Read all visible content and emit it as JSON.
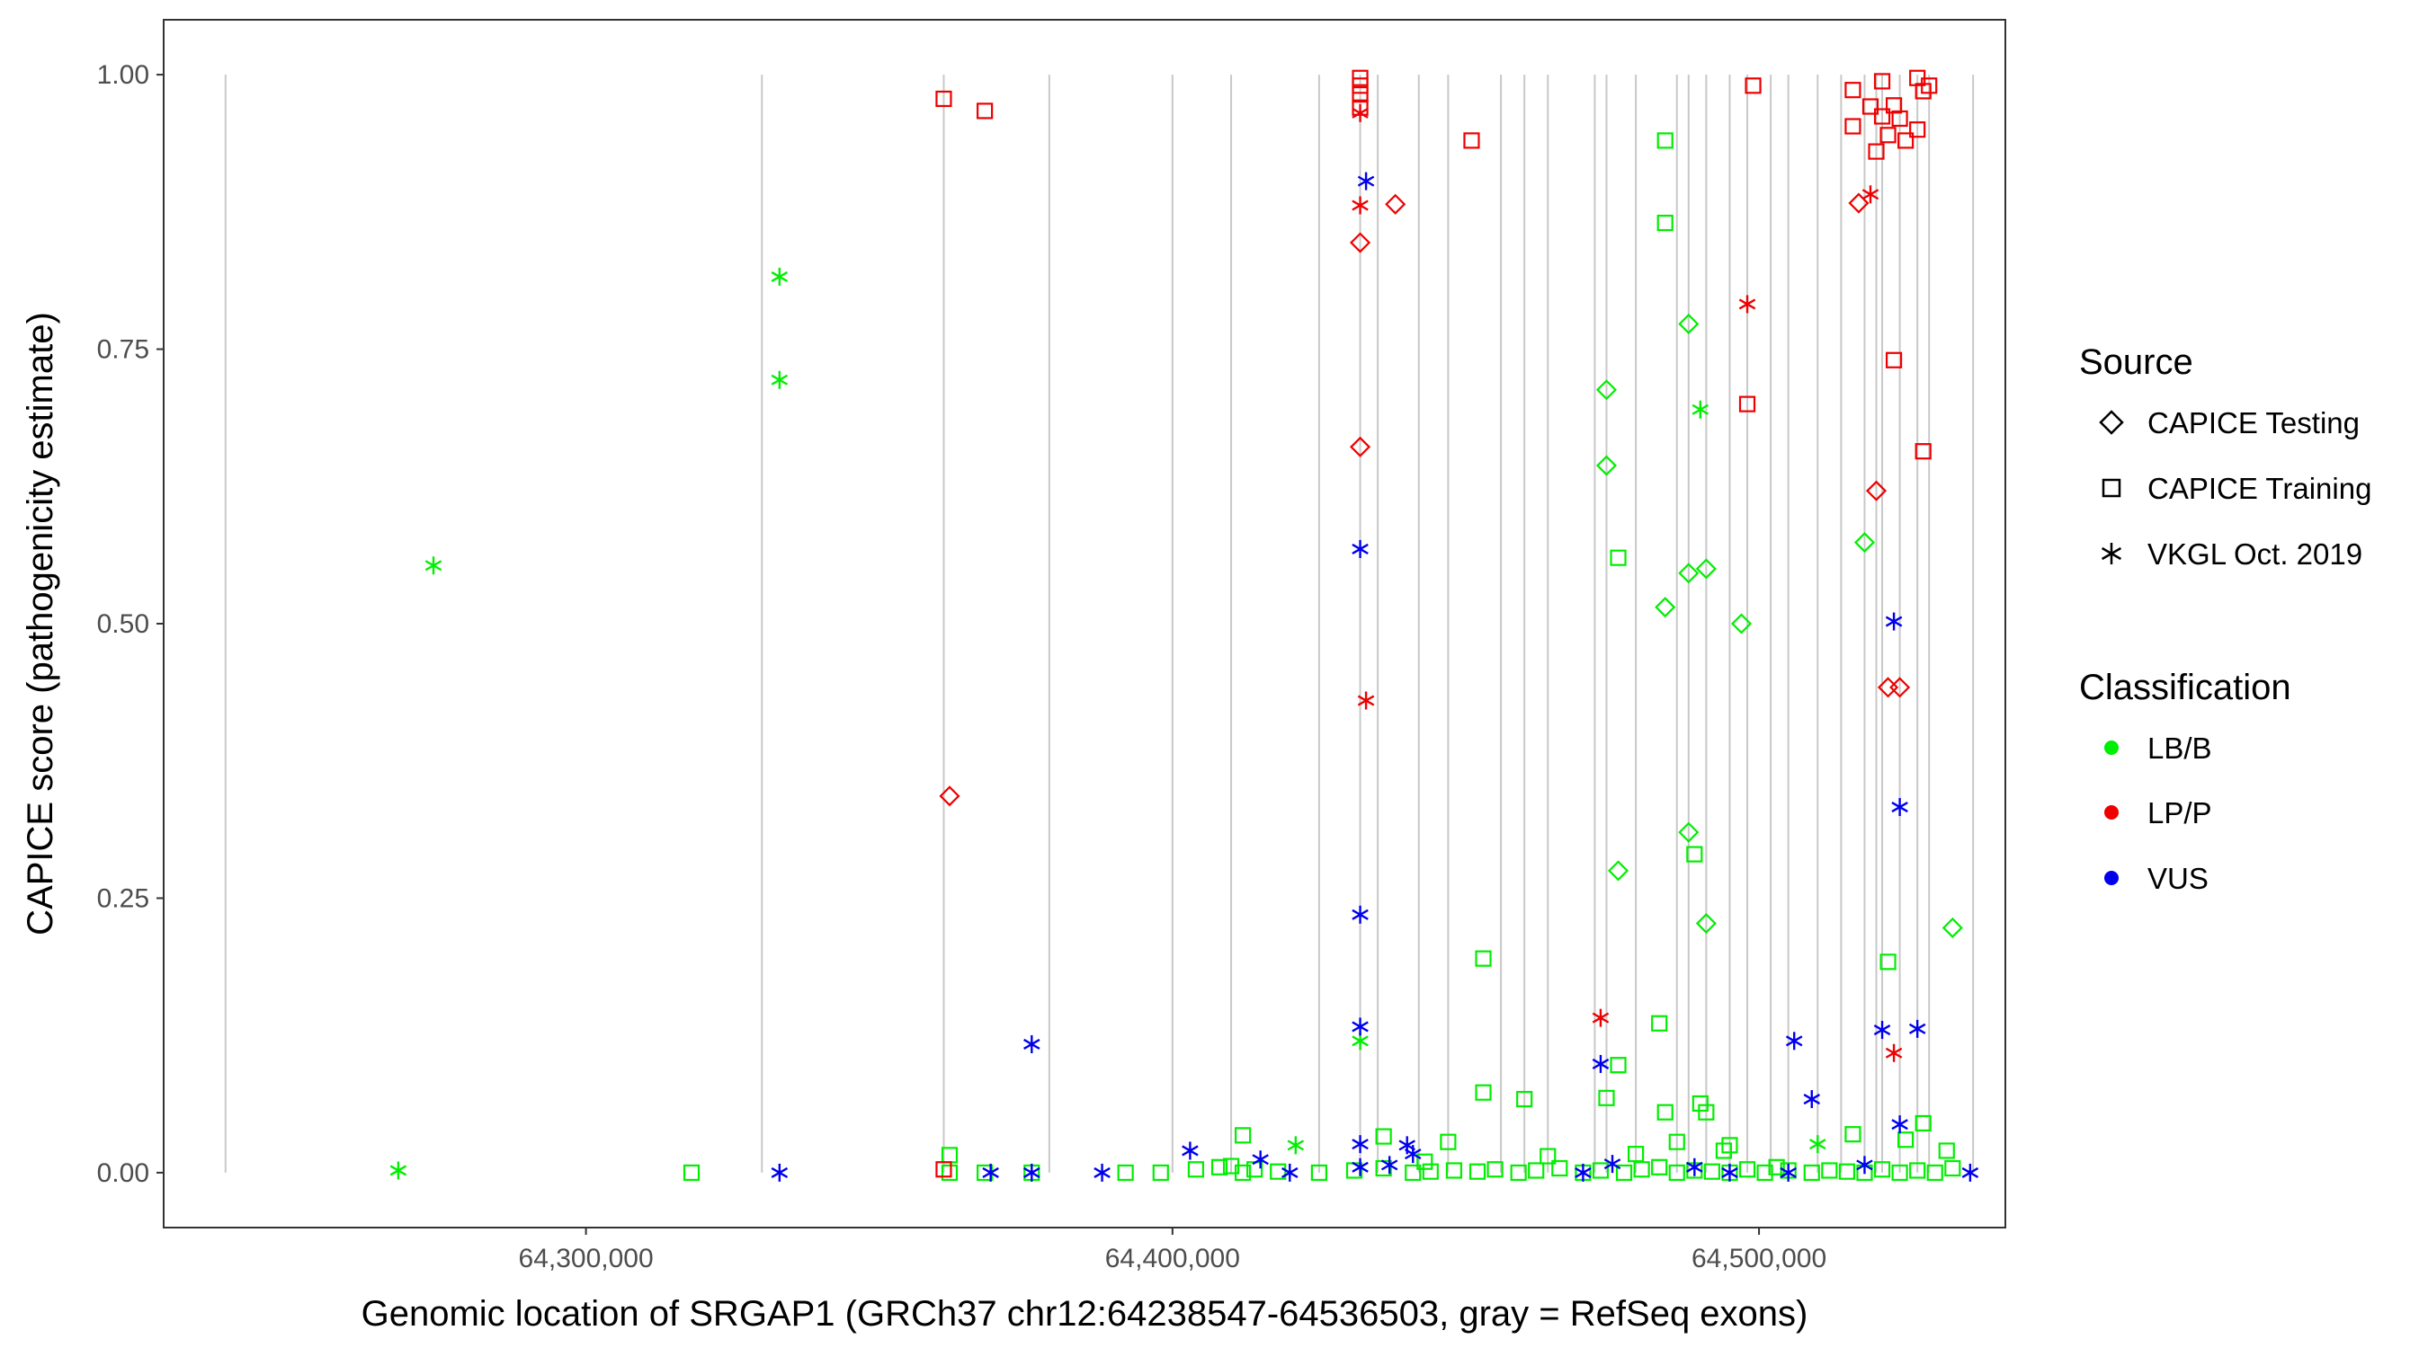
{
  "chart_data": {
    "type": "scatter",
    "title": "",
    "xlabel": "Genomic location of SRGAP1 (GRCh37 chr12:64238547-64536503, gray = RefSeq exons)",
    "ylabel": "CAPICE score (pathogenicity estimate)",
    "xlim": [
      64228000,
      64542000
    ],
    "ylim": [
      -0.05,
      1.05
    ],
    "x_ticks": [
      64300000,
      64400000,
      64500000
    ],
    "x_tick_labels": [
      "64,300,000",
      "64,400,000",
      "64,500,000"
    ],
    "y_ticks": [
      0,
      0.25,
      0.5,
      0.75,
      1.0
    ],
    "y_tick_labels": [
      "0.00",
      "0.25",
      "0.50",
      "0.75",
      "1.00"
    ],
    "gridlines": false,
    "exon_lines": [
      64238547,
      64330000,
      64361000,
      64379000,
      64400000,
      64410000,
      64425000,
      64432000,
      64435000,
      64442000,
      64447000,
      64456000,
      64460000,
      64464000,
      64472000,
      64474000,
      64479000,
      64486000,
      64488000,
      64491000,
      64495000,
      64498000,
      64502000,
      64505000,
      64510000,
      64514000,
      64518000,
      64520000,
      64521000,
      64524000,
      64527000,
      64529000,
      64536503
    ],
    "legend": {
      "source_title": "Source",
      "source_items": [
        {
          "label": "CAPICE Testing",
          "shape": "diamond"
        },
        {
          "label": "CAPICE Training",
          "shape": "square"
        },
        {
          "label": "VKGL Oct. 2019",
          "shape": "asterisk"
        }
      ],
      "class_title": "Classification",
      "class_items": [
        {
          "label": "LB/B",
          "color": "#00ee00"
        },
        {
          "label": "LP/P",
          "color": "#ee0000"
        },
        {
          "label": "VUS",
          "color": "#0000ee"
        }
      ]
    },
    "colors": {
      "LB/B": "#00ee00",
      "LP/P": "#ee0000",
      "VUS": "#0000ee"
    },
    "series": [
      {
        "name": "CAPICE Testing / LB/B",
        "shape": "diamond",
        "class": "LB/B",
        "points": [
          [
            64474000,
            0.713
          ],
          [
            64474000,
            0.644
          ],
          [
            64488000,
            0.773
          ],
          [
            64476000,
            0.275
          ],
          [
            64484000,
            0.515
          ],
          [
            64488000,
            0.546
          ],
          [
            64491000,
            0.55
          ],
          [
            64497000,
            0.5
          ],
          [
            64488000,
            0.31
          ],
          [
            64491000,
            0.227
          ],
          [
            64518000,
            0.574
          ],
          [
            64533000,
            0.223
          ]
        ]
      },
      {
        "name": "CAPICE Testing / LP/P",
        "shape": "diamond",
        "class": "LP/P",
        "points": [
          [
            64432000,
            0.847
          ],
          [
            64432000,
            0.661
          ],
          [
            64438000,
            0.882
          ],
          [
            64362000,
            0.343
          ],
          [
            64517000,
            0.883
          ],
          [
            64520000,
            0.621
          ],
          [
            64522000,
            0.442
          ],
          [
            64524000,
            0.442
          ]
        ]
      },
      {
        "name": "CAPICE Training / LB/B",
        "shape": "square",
        "class": "LB/B",
        "points": [
          [
            64484000,
            0.94
          ],
          [
            64484000,
            0.865
          ],
          [
            64476000,
            0.56
          ],
          [
            64489000,
            0.29
          ],
          [
            64453000,
            0.195
          ],
          [
            64483000,
            0.136
          ],
          [
            64476000,
            0.098
          ],
          [
            64453000,
            0.073
          ],
          [
            64474000,
            0.068
          ],
          [
            64460000,
            0.067
          ],
          [
            64484000,
            0.055
          ],
          [
            64490000,
            0.063
          ],
          [
            64491000,
            0.055
          ],
          [
            64412000,
            0.034
          ],
          [
            64436000,
            0.033
          ],
          [
            64447000,
            0.028
          ],
          [
            64486000,
            0.028
          ],
          [
            64495000,
            0.025
          ],
          [
            64522000,
            0.192
          ],
          [
            64528000,
            0.045
          ],
          [
            64503000,
            0.005
          ],
          [
            64392000,
            0.0
          ],
          [
            64398000,
            0.0
          ],
          [
            64404000,
            0.003
          ],
          [
            64408000,
            0.005
          ],
          [
            64414000,
            0.003
          ],
          [
            64418000,
            0.001
          ],
          [
            64425000,
            0.0
          ],
          [
            64431000,
            0.002
          ],
          [
            64436000,
            0.004
          ],
          [
            64441000,
            0.0
          ],
          [
            64444000,
            0.001
          ],
          [
            64448000,
            0.002
          ],
          [
            64452000,
            0.001
          ],
          [
            64455000,
            0.003
          ],
          [
            64459000,
            0.0
          ],
          [
            64462000,
            0.002
          ],
          [
            64466000,
            0.004
          ],
          [
            64470000,
            0.0
          ],
          [
            64473000,
            0.002
          ],
          [
            64477000,
            0.0
          ],
          [
            64480000,
            0.003
          ],
          [
            64483000,
            0.005
          ],
          [
            64486000,
            0.0
          ],
          [
            64489000,
            0.002
          ],
          [
            64492000,
            0.001
          ],
          [
            64495000,
            0.0
          ],
          [
            64498000,
            0.003
          ],
          [
            64501000,
            0.0
          ],
          [
            64505000,
            0.002
          ],
          [
            64509000,
            0.0
          ],
          [
            64512000,
            0.002
          ],
          [
            64515000,
            0.001
          ],
          [
            64518000,
            0.0
          ],
          [
            64521000,
            0.003
          ],
          [
            64524000,
            0.0
          ],
          [
            64527000,
            0.002
          ],
          [
            64530000,
            0.0
          ],
          [
            64533000,
            0.004
          ],
          [
            64410000,
            0.006
          ],
          [
            64412000,
            0.0
          ],
          [
            64443000,
            0.01
          ],
          [
            64464000,
            0.015
          ],
          [
            64479000,
            0.017
          ],
          [
            64494000,
            0.02
          ],
          [
            64516000,
            0.035
          ],
          [
            64525000,
            0.03
          ],
          [
            64532000,
            0.02
          ],
          [
            64362000,
            0.016
          ],
          [
            64362000,
            0.0
          ],
          [
            64318000,
            0.0
          ],
          [
            64368000,
            0.0
          ],
          [
            64376000,
            0.0
          ]
        ]
      },
      {
        "name": "CAPICE Training / LP/P",
        "shape": "square",
        "class": "LP/P",
        "points": [
          [
            64361000,
            0.978
          ],
          [
            64368000,
            0.967
          ],
          [
            64432000,
            0.99
          ],
          [
            64432000,
            0.997
          ],
          [
            64432000,
            0.982
          ],
          [
            64432000,
            0.97
          ],
          [
            64451000,
            0.94
          ],
          [
            64499000,
            0.99
          ],
          [
            64498000,
            0.7
          ],
          [
            64516000,
            0.986
          ],
          [
            64516000,
            0.953
          ],
          [
            64519000,
            0.971
          ],
          [
            64520000,
            0.93
          ],
          [
            64521000,
            0.994
          ],
          [
            64521000,
            0.962
          ],
          [
            64522000,
            0.945
          ],
          [
            64523000,
            0.972
          ],
          [
            64524000,
            0.96
          ],
          [
            64527000,
            0.997
          ],
          [
            64528000,
            0.985
          ],
          [
            64529000,
            0.99
          ],
          [
            64527000,
            0.95
          ],
          [
            64525000,
            0.94
          ],
          [
            64523000,
            0.74
          ],
          [
            64528000,
            0.657
          ],
          [
            64361000,
            0.003
          ]
        ]
      },
      {
        "name": "VKGL Oct. 2019 / LB/B",
        "shape": "asterisk",
        "class": "LB/B",
        "points": [
          [
            64333000,
            0.816
          ],
          [
            64333000,
            0.722
          ],
          [
            64274000,
            0.553
          ],
          [
            64268000,
            0.002
          ],
          [
            64432000,
            0.12
          ],
          [
            64490000,
            0.695
          ],
          [
            64421000,
            0.025
          ],
          [
            64510000,
            0.026
          ]
        ]
      },
      {
        "name": "VKGL Oct. 2019 / LP/P",
        "shape": "asterisk",
        "class": "LP/P",
        "points": [
          [
            64432000,
            0.881
          ],
          [
            64432000,
            0.965
          ],
          [
            64433000,
            0.43
          ],
          [
            64473000,
            0.141
          ],
          [
            64498000,
            0.791
          ],
          [
            64519000,
            0.891
          ],
          [
            64523000,
            0.109
          ]
        ]
      },
      {
        "name": "VKGL Oct. 2019 / VUS",
        "shape": "asterisk",
        "class": "VUS",
        "points": [
          [
            64433000,
            0.903
          ],
          [
            64432000,
            0.568
          ],
          [
            64432000,
            0.235
          ],
          [
            64432000,
            0.133
          ],
          [
            64376000,
            0.117
          ],
          [
            64473000,
            0.099
          ],
          [
            64506000,
            0.12
          ],
          [
            64509000,
            0.067
          ],
          [
            64521000,
            0.13
          ],
          [
            64523000,
            0.502
          ],
          [
            64524000,
            0.333
          ],
          [
            64527000,
            0.131
          ],
          [
            64524000,
            0.044
          ],
          [
            64333000,
            0.0
          ],
          [
            64369000,
            0.0
          ],
          [
            64376000,
            0.0
          ],
          [
            64388000,
            0.0
          ],
          [
            64403000,
            0.02
          ],
          [
            64415000,
            0.012
          ],
          [
            64420000,
            0.0
          ],
          [
            64432000,
            0.026
          ],
          [
            64432000,
            0.005
          ],
          [
            64437000,
            0.007
          ],
          [
            64440000,
            0.025
          ],
          [
            64441000,
            0.017
          ],
          [
            64470000,
            0.0
          ],
          [
            64475000,
            0.008
          ],
          [
            64489000,
            0.005
          ],
          [
            64495000,
            0.0
          ],
          [
            64505000,
            0.0
          ],
          [
            64518000,
            0.007
          ],
          [
            64536000,
            0.0
          ]
        ]
      }
    ]
  }
}
